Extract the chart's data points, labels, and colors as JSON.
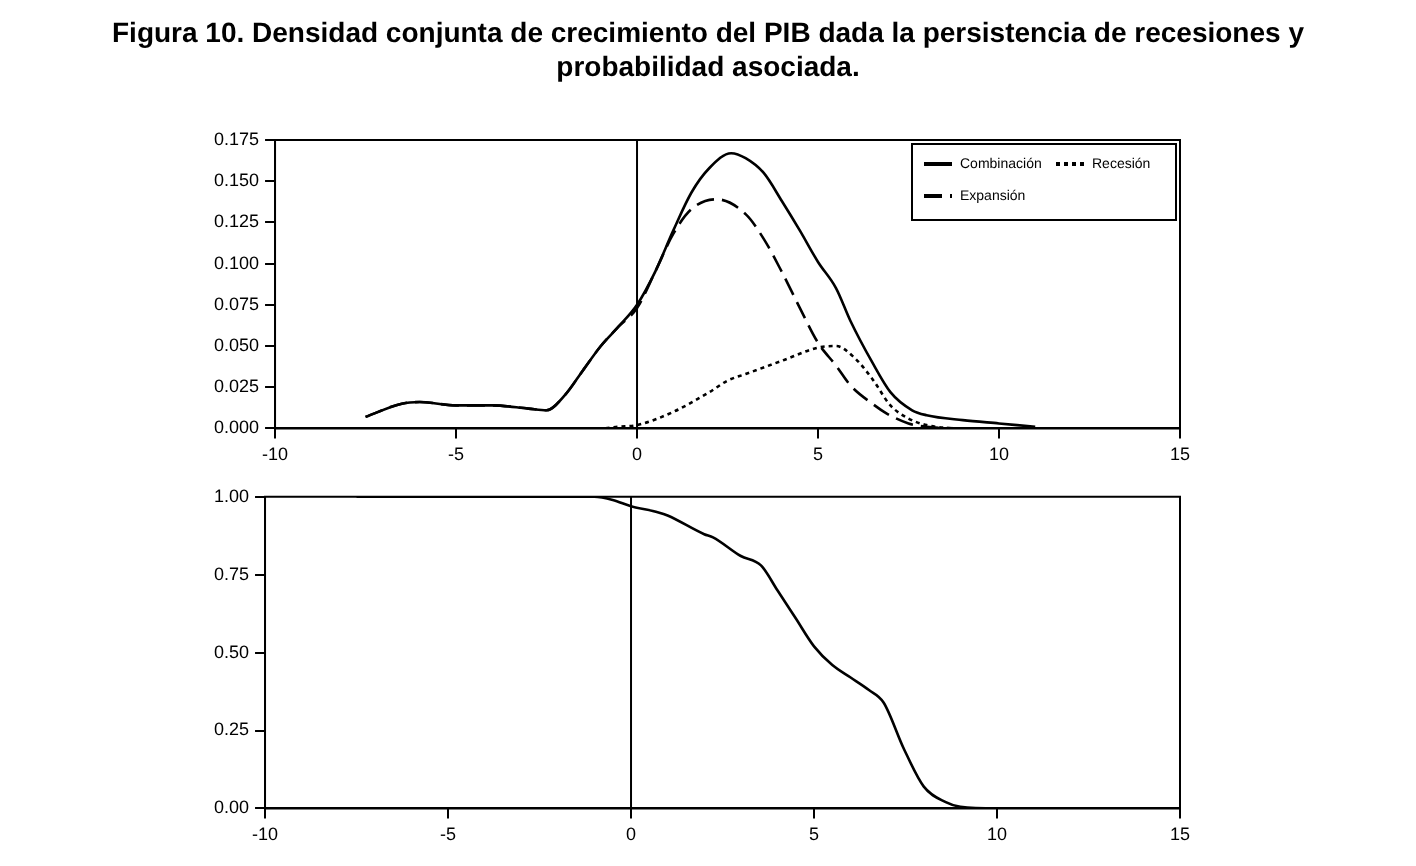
{
  "chart_data": [
    {
      "type": "line",
      "title": "Figura 10. Densidad conjunta de crecimiento del PIB dada la persistencia de recesiones y probabilidad asociada.",
      "legend": "top right",
      "grid": false,
      "marker": "none",
      "xlim": [
        -10,
        15
      ],
      "xticks": [
        -10,
        -5,
        0,
        5,
        10,
        15
      ],
      "ylim": [
        0,
        0.175
      ],
      "yticks": [
        {
          "value": 0,
          "label": "0.000"
        },
        {
          "value": 0.025,
          "label": "0.025"
        },
        {
          "value": 0.05,
          "label": "0.050"
        },
        {
          "value": 0.075,
          "label": "0.075"
        },
        {
          "value": 0.1,
          "label": "0.100"
        },
        {
          "value": 0.125,
          "label": "0.125"
        },
        {
          "value": 0.15,
          "label": "0.150"
        },
        {
          "value": 0.175,
          "label": "0.175"
        }
      ],
      "ref_lines": [
        {
          "axis": "x",
          "value": 0,
          "color": "#000000"
        }
      ],
      "series": [
        {
          "name": "Combinación",
          "color": "#000000",
          "line_style": "solid",
          "x": [
            -7.5,
            -6.5,
            -6,
            -5,
            -4,
            -3,
            -2.5,
            -2,
            -1.5,
            -1,
            -0.5,
            0,
            0.5,
            1,
            1.5,
            2,
            2.6,
            3,
            3.5,
            4,
            4.5,
            5,
            5.5,
            5.9,
            6.5,
            7,
            7.6,
            8,
            9,
            10,
            11
          ],
          "values": [
            0.007,
            0.015,
            0.016,
            0.014,
            0.014,
            0.012,
            0.011,
            0.02,
            0.035,
            0.05,
            0.062,
            0.075,
            0.095,
            0.12,
            0.143,
            0.158,
            0.167,
            0.164,
            0.155,
            0.138,
            0.12,
            0.101,
            0.085,
            0.065,
            0.04,
            0.022,
            0.011,
            0.008,
            0.005,
            0.003,
            0.001
          ]
        },
        {
          "name": "Recesión",
          "color": "#000000",
          "line_style": "dotted",
          "x": [
            -7.5,
            -3,
            -1,
            -0.5,
            0,
            1,
            2,
            2.5,
            3,
            4,
            5,
            5.5,
            6,
            6.5,
            7,
            7.5,
            8,
            9,
            11
          ],
          "values": [
            0,
            0,
            0,
            0.001,
            0.002,
            0.01,
            0.022,
            0.029,
            0.033,
            0.041,
            0.049,
            0.05,
            0.043,
            0.03,
            0.014,
            0.006,
            0.002,
            0,
            0
          ]
        },
        {
          "name": "Expansión",
          "color": "#000000",
          "line_style": "dashed",
          "x": [
            -7.5,
            -6.5,
            -6,
            -5,
            -4,
            -3,
            -2.5,
            -2,
            -1.5,
            -1,
            -0.5,
            0,
            0.5,
            1,
            1.5,
            2.2,
            3,
            3.5,
            4,
            4.5,
            5,
            5.5,
            5.9,
            6.5,
            6.9,
            7.5,
            8,
            9,
            11
          ],
          "values": [
            0.007,
            0.015,
            0.016,
            0.014,
            0.014,
            0.012,
            0.011,
            0.02,
            0.035,
            0.05,
            0.062,
            0.073,
            0.095,
            0.118,
            0.133,
            0.139,
            0.13,
            0.115,
            0.095,
            0.073,
            0.052,
            0.038,
            0.026,
            0.015,
            0.009,
            0.003,
            0.001,
            0,
            0
          ]
        }
      ]
    },
    {
      "type": "line",
      "legend": false,
      "grid": false,
      "marker": "none",
      "xlim": [
        -10,
        15
      ],
      "xticks": [
        -10,
        -5,
        0,
        5,
        10,
        15
      ],
      "ylim": [
        0,
        1
      ],
      "yticks": [
        {
          "value": 0,
          "label": "0.00"
        },
        {
          "value": 0.25,
          "label": "0.25"
        },
        {
          "value": 0.5,
          "label": "0.50"
        },
        {
          "value": 0.75,
          "label": "0.75"
        },
        {
          "value": 1,
          "label": "1.00"
        }
      ],
      "ref_lines": [
        {
          "axis": "x",
          "value": 0,
          "color": "#000000"
        }
      ],
      "series": [
        {
          "color": "#000000",
          "line_style": "solid",
          "x": [
            -7.5,
            -3,
            -1,
            -0.5,
            0,
            0.75,
            1,
            2,
            2.24,
            3,
            3.55,
            4,
            4.5,
            5,
            5.5,
            6,
            6.5,
            6.9,
            7.46,
            8,
            8.6,
            9,
            10,
            11
          ],
          "values": [
            1,
            1,
            1,
            0.99,
            0.97,
            0.95,
            0.94,
            0.88,
            0.87,
            0.81,
            0.78,
            0.7,
            0.61,
            0.52,
            0.46,
            0.42,
            0.38,
            0.34,
            0.19,
            0.07,
            0.02,
            0.005,
            0,
            0
          ]
        }
      ]
    }
  ]
}
